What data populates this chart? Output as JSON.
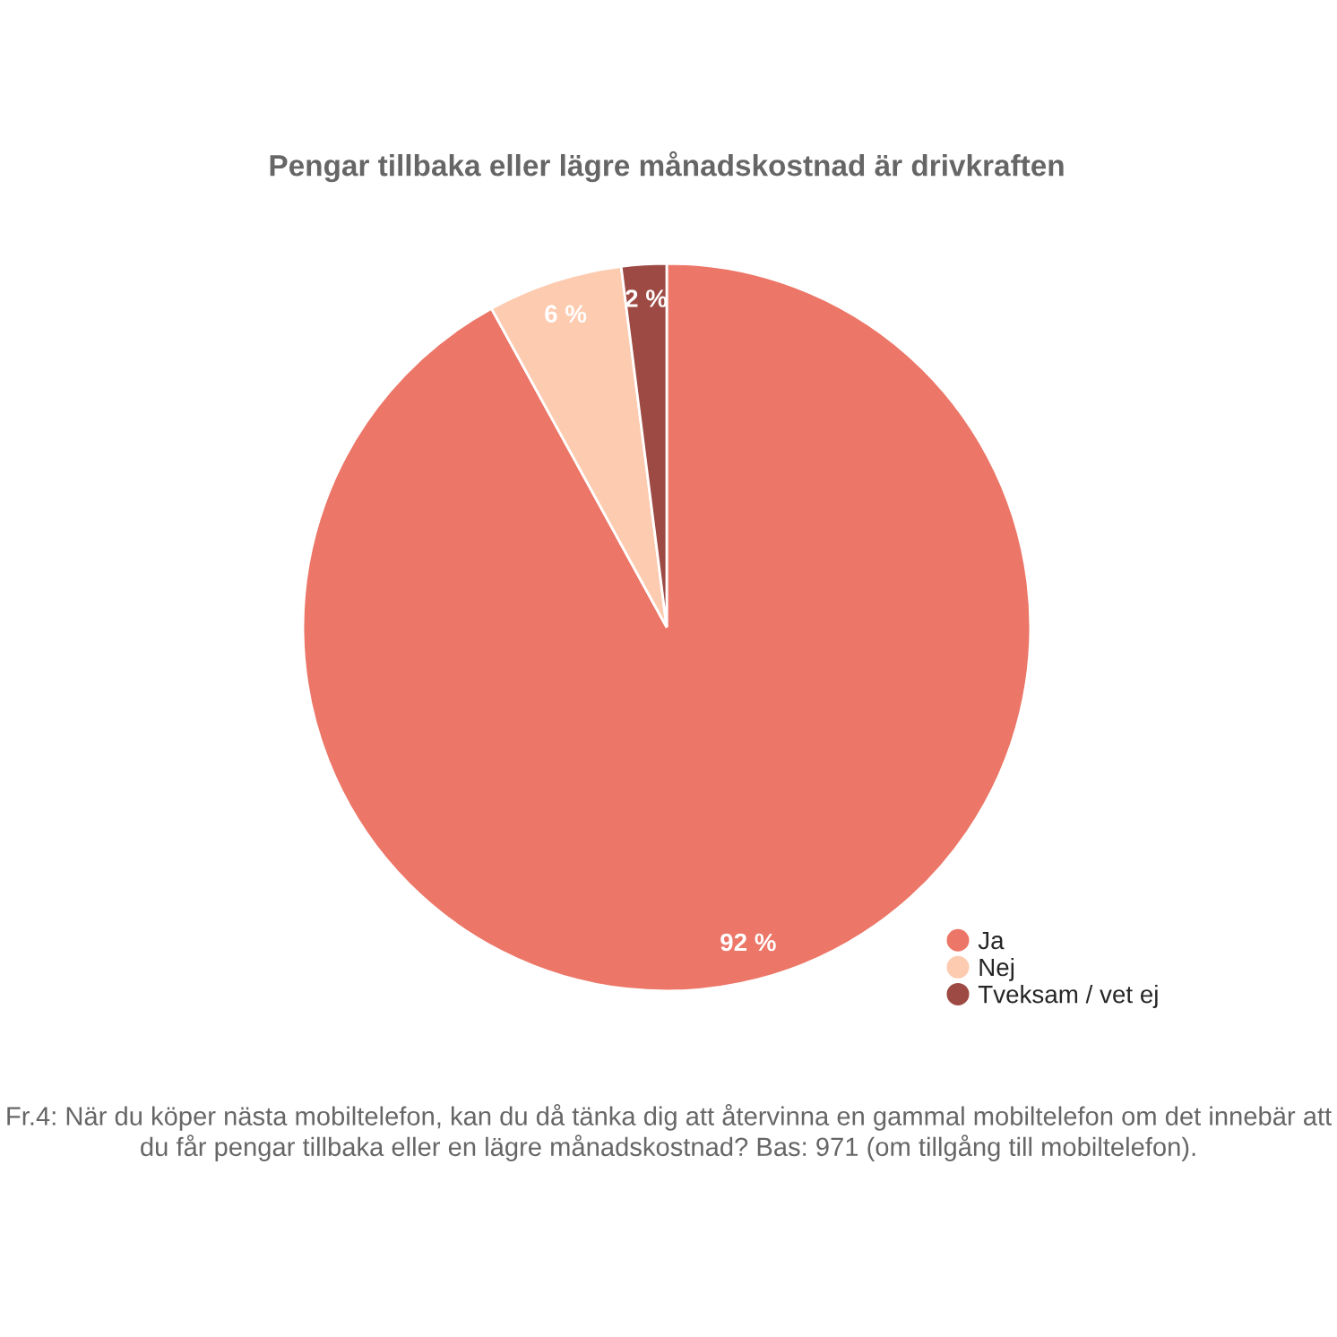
{
  "chart_data": {
    "type": "pie",
    "title": "Pengar tillbaka eller lägre månadskostnad är drivkraften",
    "categories": [
      "Ja",
      "Nej",
      "Tveksam / vet ej"
    ],
    "values": [
      92,
      6,
      2
    ],
    "colors": [
      "#ec7667",
      "#fdcbb0",
      "#9e4a44"
    ],
    "value_labels": [
      "92 %",
      "6 %",
      "2 %"
    ],
    "legend": "bottom right",
    "annotations": [
      "Fr.4: När du köper nästa mobiltelefon, kan du då tänka dig att återvinna en gammal mobiltelefon om det innebär att du får pengar tillbaka eller en lägre månadskostnad? Bas: 971 (om tillgång till mobiltelefon)."
    ]
  }
}
